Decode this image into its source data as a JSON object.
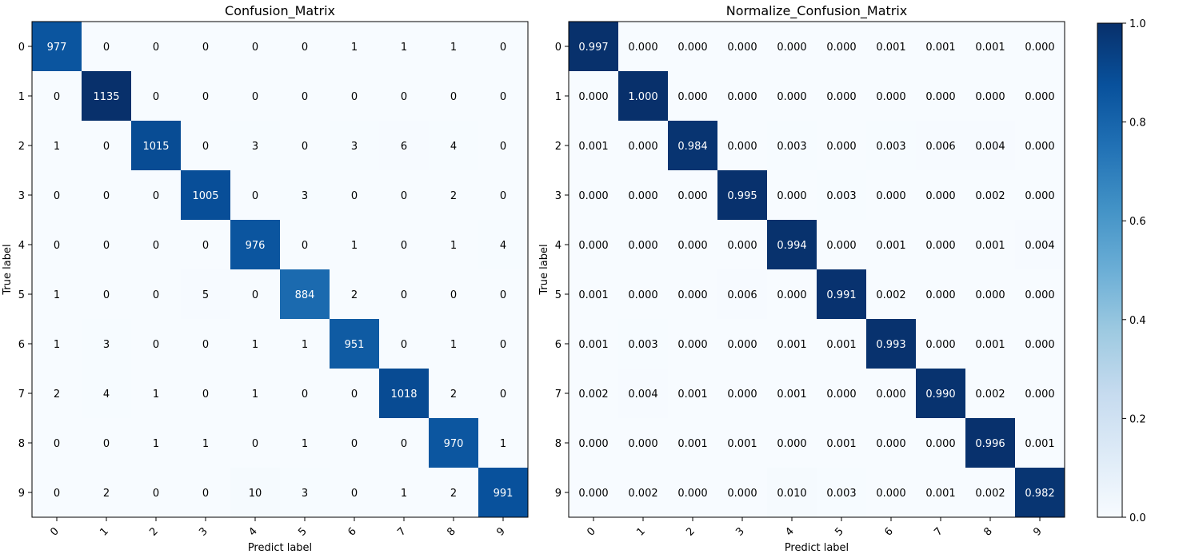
{
  "chart_data": [
    {
      "type": "heatmap",
      "title": "Confusion_Matrix",
      "xlabel": "Predict label",
      "ylabel": "True label",
      "x_ticks": [
        "0",
        "1",
        "2",
        "3",
        "4",
        "5",
        "6",
        "7",
        "8",
        "9"
      ],
      "y_ticks": [
        "0",
        "1",
        "2",
        "3",
        "4",
        "5",
        "6",
        "7",
        "8",
        "9"
      ],
      "color_range": [
        0,
        1135
      ],
      "values": [
        [
          977,
          0,
          0,
          0,
          0,
          0,
          1,
          1,
          1,
          0
        ],
        [
          0,
          1135,
          0,
          0,
          0,
          0,
          0,
          0,
          0,
          0
        ],
        [
          1,
          0,
          1015,
          0,
          3,
          0,
          3,
          6,
          4,
          0
        ],
        [
          0,
          0,
          0,
          1005,
          0,
          3,
          0,
          0,
          2,
          0
        ],
        [
          0,
          0,
          0,
          0,
          976,
          0,
          1,
          0,
          1,
          4
        ],
        [
          1,
          0,
          0,
          5,
          0,
          884,
          2,
          0,
          0,
          0
        ],
        [
          1,
          3,
          0,
          0,
          1,
          1,
          951,
          0,
          1,
          0
        ],
        [
          2,
          4,
          1,
          0,
          1,
          0,
          0,
          1018,
          2,
          0
        ],
        [
          0,
          0,
          1,
          1,
          0,
          1,
          0,
          0,
          970,
          1
        ],
        [
          0,
          2,
          0,
          0,
          10,
          3,
          0,
          1,
          2,
          991
        ]
      ]
    },
    {
      "type": "heatmap",
      "title": "Normalize_Confusion_Matrix",
      "xlabel": "Predict label",
      "ylabel": "True label",
      "x_ticks": [
        "0",
        "1",
        "2",
        "3",
        "4",
        "5",
        "6",
        "7",
        "8",
        "9"
      ],
      "y_ticks": [
        "0",
        "1",
        "2",
        "3",
        "4",
        "5",
        "6",
        "7",
        "8",
        "9"
      ],
      "color_range": [
        0,
        1
      ],
      "colorbar_ticks": [
        "0.0",
        "0.2",
        "0.4",
        "0.6",
        "0.8",
        "1.0"
      ],
      "values": [
        [
          "0.997",
          "0.000",
          "0.000",
          "0.000",
          "0.000",
          "0.000",
          "0.001",
          "0.001",
          "0.001",
          "0.000"
        ],
        [
          "0.000",
          "1.000",
          "0.000",
          "0.000",
          "0.000",
          "0.000",
          "0.000",
          "0.000",
          "0.000",
          "0.000"
        ],
        [
          "0.001",
          "0.000",
          "0.984",
          "0.000",
          "0.003",
          "0.000",
          "0.003",
          "0.006",
          "0.004",
          "0.000"
        ],
        [
          "0.000",
          "0.000",
          "0.000",
          "0.995",
          "0.000",
          "0.003",
          "0.000",
          "0.000",
          "0.002",
          "0.000"
        ],
        [
          "0.000",
          "0.000",
          "0.000",
          "0.000",
          "0.994",
          "0.000",
          "0.001",
          "0.000",
          "0.001",
          "0.004"
        ],
        [
          "0.001",
          "0.000",
          "0.000",
          "0.006",
          "0.000",
          "0.991",
          "0.002",
          "0.000",
          "0.000",
          "0.000"
        ],
        [
          "0.001",
          "0.003",
          "0.000",
          "0.000",
          "0.001",
          "0.001",
          "0.993",
          "0.000",
          "0.001",
          "0.000"
        ],
        [
          "0.002",
          "0.004",
          "0.001",
          "0.000",
          "0.001",
          "0.000",
          "0.000",
          "0.990",
          "0.002",
          "0.000"
        ],
        [
          "0.000",
          "0.000",
          "0.001",
          "0.001",
          "0.000",
          "0.001",
          "0.000",
          "0.000",
          "0.996",
          "0.001"
        ],
        [
          "0.000",
          "0.002",
          "0.000",
          "0.000",
          "0.010",
          "0.003",
          "0.000",
          "0.001",
          "0.002",
          "0.982"
        ]
      ]
    }
  ],
  "colors": {
    "cmap": [
      "#f7fbff",
      "#deebf7",
      "#c6dbef",
      "#9ecae1",
      "#6baed6",
      "#4292c6",
      "#2171b5",
      "#08519c",
      "#08306b"
    ]
  }
}
